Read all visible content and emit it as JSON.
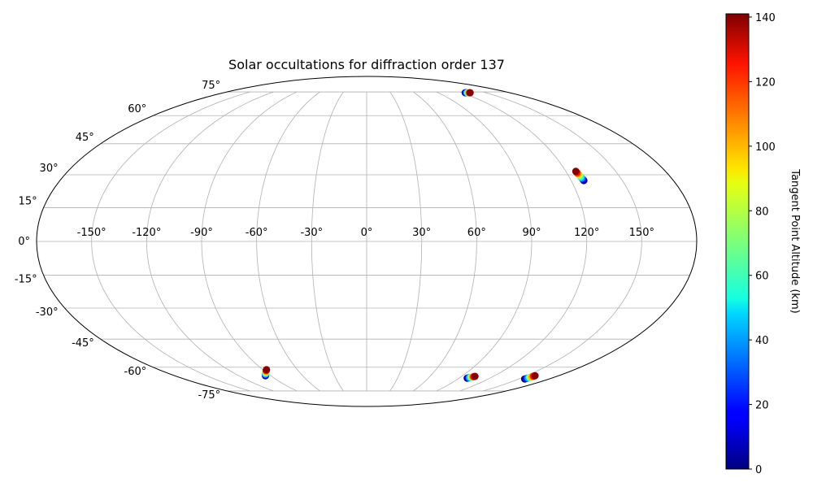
{
  "chart_data": {
    "type": "scatter",
    "projection": "mollweide",
    "title": "Solar occultations for diffraction order 137",
    "grid": true,
    "lon_ticks": [
      -150,
      -120,
      -90,
      -60,
      -30,
      0,
      30,
      60,
      90,
      120,
      150
    ],
    "lat_ticks": [
      -75,
      -60,
      -45,
      -30,
      -15,
      0,
      15,
      30,
      45,
      60,
      75
    ],
    "lon_tick_labels": [
      "-150°",
      "-120°",
      "-90°",
      "-60°",
      "-30°",
      "0°",
      "30°",
      "60°",
      "90°",
      "120°",
      "150°"
    ],
    "lat_tick_labels": [
      "-75°",
      "-60°",
      "-45°",
      "-30°",
      "-15°",
      "0°",
      "15°",
      "30°",
      "45°",
      "60°",
      "75°"
    ],
    "colorbar": {
      "label": "Tangent Point Altitude (km)",
      "colormap": "jet",
      "range": [
        0,
        141
      ],
      "ticks": [
        0,
        20,
        40,
        60,
        80,
        100,
        120,
        140
      ],
      "tick_labels": [
        "0",
        "20",
        "40",
        "60",
        "80",
        "100",
        "120",
        "140"
      ],
      "placement": "right"
    },
    "series": [
      {
        "points": [
          [
            124,
            74.4,
            0
          ],
          [
            125,
            74.4,
            20
          ],
          [
            126,
            74.4,
            40
          ],
          [
            127,
            74.4,
            60
          ],
          [
            128,
            74.4,
            80
          ],
          [
            128.5,
            74.4,
            100
          ],
          [
            129.5,
            74.4,
            120
          ],
          [
            130,
            74.4,
            140
          ]
        ]
      },
      {
        "points": [
          [
            127.4,
            27.3,
            0
          ],
          [
            127.2,
            27.9,
            20
          ],
          [
            127,
            28.5,
            40
          ],
          [
            126.8,
            29.1,
            60
          ],
          [
            126.6,
            29.8,
            80
          ],
          [
            126.4,
            30.4,
            100
          ],
          [
            126.2,
            31,
            120
          ],
          [
            126,
            31.6,
            140
          ]
        ]
      },
      {
        "points": [
          [
            -95,
            -65,
            0
          ],
          [
            -93.8,
            -64.5,
            20
          ],
          [
            -92.7,
            -64,
            40
          ],
          [
            -91.5,
            -63.5,
            60
          ],
          [
            -90.3,
            -62.9,
            80
          ],
          [
            -89.2,
            -62.4,
            100
          ],
          [
            -88,
            -61.9,
            120
          ],
          [
            -86.8,
            -61.4,
            140
          ]
        ]
      },
      {
        "points": [
          [
            98,
            -66.5,
            0
          ],
          [
            98.7,
            -66.3,
            20
          ],
          [
            99.3,
            -66.2,
            40
          ],
          [
            100,
            -66,
            60
          ],
          [
            100.6,
            -65.9,
            80
          ],
          [
            101.3,
            -65.7,
            100
          ],
          [
            101.9,
            -65.6,
            120
          ],
          [
            102.6,
            -65.4,
            140
          ]
        ]
      },
      {
        "points": [
          [
            156,
            -67,
            0
          ],
          [
            156.3,
            -66.7,
            20
          ],
          [
            156.6,
            -66.4,
            40
          ],
          [
            156.9,
            -66.1,
            60
          ],
          [
            157.1,
            -65.9,
            80
          ],
          [
            157.4,
            -65.6,
            100
          ],
          [
            157.7,
            -65.3,
            120
          ],
          [
            158,
            -65,
            140
          ]
        ]
      }
    ]
  }
}
